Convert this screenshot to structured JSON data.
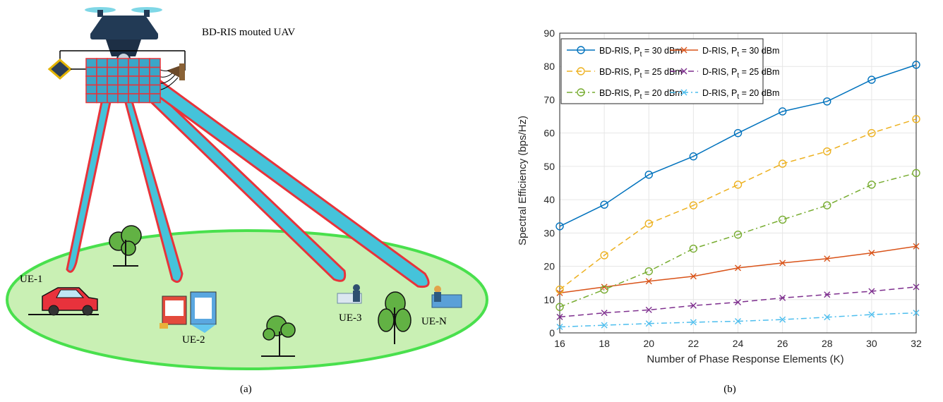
{
  "diagram": {
    "title": "BD-RIS mouted UAV",
    "users": [
      "UE-1",
      "UE-2",
      "UE-3",
      "UE-N"
    ],
    "caption": "(a)"
  },
  "figure_b": {
    "caption": "(b)"
  },
  "chart_data": {
    "type": "line",
    "xlabel": "Number of Phase Response Elements (K)",
    "ylabel": "Spectral Efficiency (bps/Hz)",
    "xlim": [
      16,
      32
    ],
    "ylim": [
      0,
      90
    ],
    "x_ticks": [
      16,
      18,
      20,
      22,
      24,
      26,
      28,
      30,
      32
    ],
    "y_ticks": [
      0,
      10,
      20,
      30,
      40,
      50,
      60,
      70,
      80,
      90
    ],
    "grid": true,
    "legend_position": "top-left",
    "x": [
      16,
      18,
      20,
      22,
      24,
      26,
      28,
      30,
      32
    ],
    "series": [
      {
        "legend": "BD-RIS, P",
        "sub": "t",
        "tail": " = 30 dBm",
        "color": "#0072BD",
        "marker": "circle",
        "dash": "solid",
        "values": [
          32,
          38.5,
          47.5,
          53,
          60,
          66.5,
          69.5,
          76,
          80.5
        ]
      },
      {
        "legend": "D-RIS, P",
        "sub": "t",
        "tail": " = 30 dBm",
        "color": "#D95319",
        "marker": "x",
        "dash": "solid",
        "values": [
          12,
          13.8,
          15.5,
          17,
          19.5,
          21,
          22.3,
          24,
          26
        ]
      },
      {
        "legend": "BD-RIS, P",
        "sub": "t",
        "tail": " = 25 dBm",
        "color": "#EDB120",
        "marker": "circle",
        "dash": "dashed",
        "values": [
          13,
          23.3,
          32.8,
          38.3,
          44.5,
          50.8,
          54.5,
          60,
          64.2
        ]
      },
      {
        "legend": "D-RIS, P",
        "sub": "t",
        "tail": " = 25 dBm",
        "color": "#7E2F8E",
        "marker": "x",
        "dash": "dashed",
        "values": [
          4.8,
          6,
          6.9,
          8.2,
          9.2,
          10.5,
          11.5,
          12.5,
          13.8
        ]
      },
      {
        "legend": "BD-RIS, P",
        "sub": "t",
        "tail": " = 20 dBm",
        "color": "#77AC30",
        "marker": "circle",
        "dash": "dashdot",
        "values": [
          7.8,
          13,
          18.5,
          25.3,
          29.5,
          34,
          38.3,
          44.5,
          48
        ]
      },
      {
        "legend": "D-RIS, P",
        "sub": "t",
        "tail": " = 20 dBm",
        "color": "#4DBEEE",
        "marker": "x",
        "dash": "dashdot",
        "values": [
          1.8,
          2.3,
          2.8,
          3.2,
          3.5,
          4,
          4.7,
          5.5,
          6
        ]
      }
    ]
  }
}
